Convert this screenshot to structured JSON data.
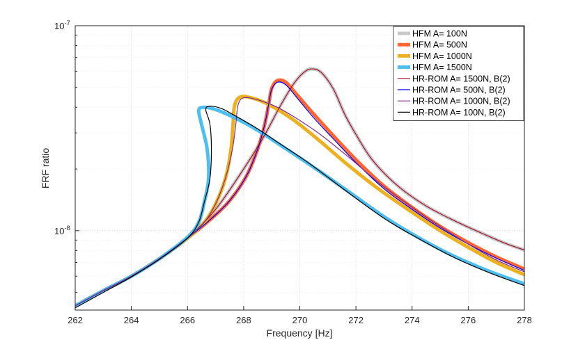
{
  "chart_data": {
    "type": "line",
    "xlabel": "Frequency [Hz]",
    "ylabel": "FRF ratio",
    "xlim": [
      262,
      278
    ],
    "ylim": [
      4.1e-09,
      1e-07
    ],
    "yscale": "log",
    "grid": true,
    "legend_position": "top-right",
    "x_ticks": [
      262,
      264,
      266,
      268,
      270,
      272,
      274,
      276,
      278
    ],
    "x_tick_labels": [
      "262",
      "264",
      "266",
      "268",
      "270",
      "272",
      "274",
      "276",
      "278"
    ],
    "y_ticks": [
      1e-08,
      1e-07
    ],
    "y_tick_labels": [
      {
        "base": "10",
        "exp": "-8"
      },
      {
        "base": "10",
        "exp": "-7"
      }
    ],
    "series": [
      {
        "name": "HFM A= 100N",
        "color": "#c8c8c8",
        "width": 5,
        "x": [
          262,
          263,
          264,
          265,
          266,
          267,
          268,
          268.7,
          269.3,
          269.8,
          270.2,
          270.5,
          270.8,
          271.2,
          271.6,
          272,
          272.6,
          273.5,
          274.5,
          275.5,
          276.5,
          277.3,
          278
        ],
        "y": [
          4.3e-09,
          5.1e-09,
          6e-09,
          7.3e-09,
          9.2e-09,
          1.27e-08,
          2e-08,
          2.85e-08,
          4.05e-08,
          5.25e-08,
          6e-08,
          6.15e-08,
          5.85e-08,
          4.9e-08,
          3.7e-08,
          2.95e-08,
          2.2e-08,
          1.65e-08,
          1.32e-08,
          1.12e-08,
          9.7e-09,
          8.7e-09,
          8.05e-09
        ]
      },
      {
        "name": "HFM A= 500N",
        "color": "#ff6633",
        "width": 5,
        "x": [
          262,
          263,
          264,
          265,
          266,
          266.8,
          267.5,
          268.1,
          268.5,
          268.75,
          268.9,
          269.0,
          269.2,
          269.5,
          269.9,
          270.5,
          271.2,
          272,
          273,
          274,
          275,
          276,
          277,
          278
        ],
        "y": [
          4.3e-09,
          5.1e-09,
          6e-09,
          7.3e-09,
          9.2e-09,
          1.13e-08,
          1.4e-08,
          1.85e-08,
          2.5e-08,
          3.3e-08,
          4.2e-08,
          4.95e-08,
          5.4e-08,
          5.3e-08,
          4.6e-08,
          3.7e-08,
          2.9e-08,
          2.22e-08,
          1.65e-08,
          1.3e-08,
          1.05e-08,
          8.75e-09,
          7.45e-09,
          6.5e-09
        ]
      },
      {
        "name": "HFM A= 1000N",
        "color": "#edb120",
        "width": 5,
        "x": [
          262,
          263,
          264,
          265,
          266,
          266.6,
          267.0,
          267.35,
          267.55,
          267.62,
          267.68,
          267.9,
          268.4,
          269,
          269.8,
          270.7,
          271.7,
          272.8,
          274,
          275,
          276,
          277,
          278
        ],
        "y": [
          4.3e-09,
          5.1e-09,
          6e-09,
          7.3e-09,
          9.2e-09,
          1.1e-08,
          1.35e-08,
          1.8e-08,
          2.5e-08,
          3.3e-08,
          4.1e-08,
          4.5e-08,
          4.4e-08,
          4.05e-08,
          3.45e-08,
          2.75e-08,
          2.1e-08,
          1.6e-08,
          1.23e-08,
          1e-08,
          8.3e-09,
          7e-09,
          6.1e-09
        ]
      },
      {
        "name": "HFM A= 1500N",
        "color": "#4dbeee",
        "width": 5,
        "x": [
          262,
          263,
          264,
          265,
          266,
          266.4,
          266.6,
          266.75,
          266.7,
          266.5,
          266.4,
          266.55,
          267.0,
          267.6,
          268.4,
          269.3,
          270.4,
          271.6,
          273,
          274.2,
          275.5,
          276.8,
          278
        ],
        "y": [
          4.3e-09,
          5.1e-09,
          6e-09,
          7.3e-09,
          9.3e-09,
          1.1e-08,
          1.38e-08,
          1.8e-08,
          2.5e-08,
          3.3e-08,
          3.85e-08,
          4e-08,
          3.9e-08,
          3.6e-08,
          3.15e-08,
          2.62e-08,
          2.08e-08,
          1.6e-08,
          1.17e-08,
          9.3e-09,
          7.5e-09,
          6.3e-09,
          5.5e-09
        ]
      },
      {
        "name": "HR-ROM A= 1500N, B(2)",
        "color": "#a2142f",
        "width": 1.2,
        "x": [
          262,
          263,
          264,
          265,
          266,
          267,
          268,
          268.7,
          269.3,
          269.8,
          270.2,
          270.5,
          270.8,
          271.2,
          271.6,
          272,
          272.6,
          273.5,
          274.5,
          275.5,
          276.5,
          277.3,
          278
        ],
        "y": [
          4.3e-09,
          5.1e-09,
          6e-09,
          7.3e-09,
          9.2e-09,
          1.27e-08,
          2e-08,
          2.85e-08,
          4.05e-08,
          5.25e-08,
          6e-08,
          6.15e-08,
          5.85e-08,
          4.9e-08,
          3.7e-08,
          2.95e-08,
          2.2e-08,
          1.65e-08,
          1.32e-08,
          1.12e-08,
          9.7e-09,
          8.7e-09,
          8.05e-09
        ]
      },
      {
        "name": "HR-ROM A= 500N, B(2)",
        "color": "#0000ff",
        "width": 1.2,
        "x": [
          262,
          263,
          264,
          265,
          266,
          266.8,
          267.5,
          268.1,
          268.5,
          268.75,
          268.9,
          269.0,
          269.2,
          269.5,
          269.9,
          270.5,
          271.2,
          272,
          273,
          274,
          275,
          276,
          277,
          278
        ],
        "y": [
          4.3e-09,
          5.1e-09,
          6e-09,
          7.3e-09,
          9.2e-09,
          1.13e-08,
          1.4e-08,
          1.85e-08,
          2.5e-08,
          3.3e-08,
          4.2e-08,
          4.9e-08,
          5.3e-08,
          5.15e-08,
          4.45e-08,
          3.55e-08,
          2.8e-08,
          2.15e-08,
          1.6e-08,
          1.27e-08,
          1.03e-08,
          8.6e-09,
          7.35e-09,
          6.4e-09
        ]
      },
      {
        "name": "HR-ROM A= 1000N, B(2)",
        "color": "#7e2f8e",
        "width": 1.2,
        "x": [
          262,
          263,
          264,
          265,
          266,
          266.6,
          267.0,
          267.35,
          267.6,
          267.72,
          267.8,
          268.0,
          268.5,
          269.2,
          270,
          270.8,
          271.8,
          272.8,
          274,
          275,
          276,
          277,
          278
        ],
        "y": [
          4.3e-09,
          5.1e-09,
          6e-09,
          7.3e-09,
          9.2e-09,
          1.1e-08,
          1.35e-08,
          1.8e-08,
          2.5e-08,
          3.3e-08,
          4.1e-08,
          4.45e-08,
          4.35e-08,
          4e-08,
          3.45e-08,
          2.9e-08,
          2.25e-08,
          1.72e-08,
          1.3e-08,
          1.05e-08,
          8.6e-09,
          7.2e-09,
          6.3e-09
        ]
      },
      {
        "name": "HR-ROM A= 100N, B(2)",
        "color": "#000000",
        "width": 1.2,
        "x": [
          262,
          263,
          264,
          265,
          266,
          266.4,
          266.6,
          266.8,
          266.85,
          266.8,
          266.65,
          266.8,
          267.2,
          267.6,
          268.4,
          269.3,
          270.4,
          271.6,
          273,
          274.2,
          275.5,
          276.8,
          278
        ],
        "y": [
          4.2e-09,
          5e-09,
          5.95e-09,
          7.25e-09,
          9.2e-09,
          1.1e-08,
          1.38e-08,
          1.8e-08,
          2.5e-08,
          3.3e-08,
          3.9e-08,
          4.05e-08,
          3.95e-08,
          3.7e-08,
          3.2e-08,
          2.65e-08,
          2.1e-08,
          1.58e-08,
          1.15e-08,
          9.2e-09,
          7.4e-09,
          6.2e-09,
          5.4e-09
        ]
      }
    ]
  }
}
